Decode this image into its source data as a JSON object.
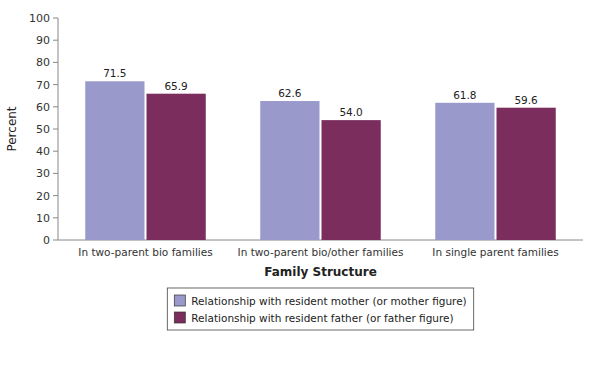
{
  "chart_data": {
    "type": "bar",
    "categories": [
      "In two-parent bio families",
      "In two-parent bio/other families",
      "In single parent families"
    ],
    "series": [
      {
        "name": "Relationship with resident mother (or mother figure)",
        "color": "#9999CC",
        "values": [
          71.5,
          62.6,
          61.8
        ]
      },
      {
        "name": "Relationship with resident father (or father figure)",
        "color": "#7B2D5E",
        "values": [
          65.9,
          54.0,
          59.6
        ],
        "value_labels": [
          "65.9",
          "54.0",
          "59.6"
        ]
      }
    ],
    "xlabel": "Family Structure",
    "ylabel": "Percent",
    "ylim": [
      0,
      100
    ],
    "yticks": [
      0,
      10,
      20,
      30,
      40,
      50,
      60,
      70,
      80,
      90,
      100
    ],
    "data_labels": true,
    "grid": false,
    "legend": "bottom"
  }
}
